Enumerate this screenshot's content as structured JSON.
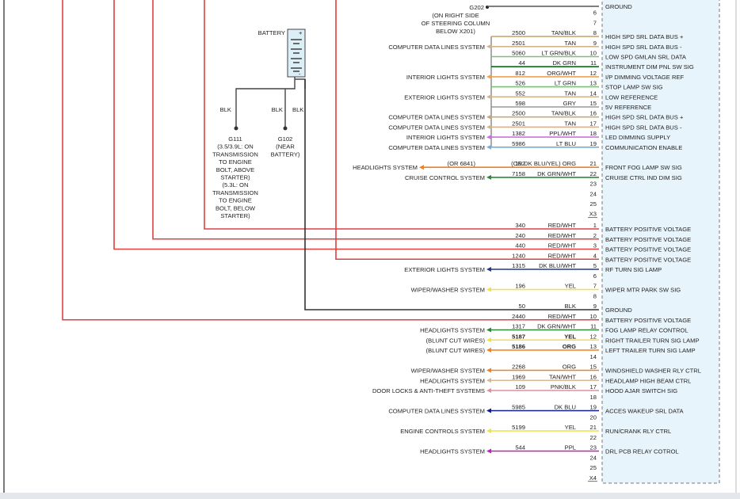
{
  "header": {
    "ground_ref": "G202",
    "ground_note": [
      "(ON RIGHT SIDE",
      "OF STEERING COLUMN",
      "BELOW X201)"
    ],
    "battery": "BATTERY",
    "battery_pos": "+",
    "battery_neg": "-",
    "wire_labels": [
      "BLK",
      "BLK",
      "BLK"
    ],
    "g111": [
      "G111",
      "(3.5/3.9L: ON",
      "TRANSMISSION",
      "TO ENGINE",
      "BOLT, ABOVE",
      "STARTER)",
      "(5.3L: ON",
      "TRANSMISSION",
      "TO ENGINE",
      "BOLT, BELOW",
      "STARTER)"
    ],
    "g102": [
      "G102",
      "(NEAR",
      "BATTERY)"
    ]
  },
  "connectors": [
    {
      "label": "X3",
      "pins": [
        {
          "function": "GROUND",
          "stroke": "#555555"
        },
        {
          "pin": 6
        },
        {
          "pin": 7
        },
        {
          "pin": 8,
          "circuit": "2500",
          "color": "TAN/BLK",
          "function": "HIGH SPD SRL DATA BUS +",
          "stroke": "#c8a878"
        },
        {
          "pin": 9,
          "circuit": "2501",
          "color": "TAN",
          "system": "COMPUTER DATA LINES SYSTEM",
          "function": "HIGH SPD SRL DATA BUS -",
          "stroke": "#d2b48c"
        },
        {
          "pin": 10,
          "circuit": "5060",
          "color": "LT GRN/BLK",
          "function": "LOW SPD GMLAN SRL DATA",
          "stroke": "#7cc07c"
        },
        {
          "pin": 11,
          "circuit": "44",
          "color": "DK GRN",
          "function": "INSTRUMENT DIM PNL SW SIG",
          "stroke": "#0a6a1a"
        },
        {
          "pin": 12,
          "circuit": "812",
          "color": "ORG/WHT",
          "system": "INTERIOR LIGHTS SYSTEM",
          "function": "I/P DIMMING VOLTAGE REF",
          "stroke": "#f0a050"
        },
        {
          "pin": 13,
          "circuit": "526",
          "color": "LT GRN",
          "function": "STOP LAMP SW SIG",
          "stroke": "#5fd35f"
        },
        {
          "pin": 14,
          "circuit": "552",
          "color": "TAN",
          "system": "EXTERIOR LIGHTS SYSTEM",
          "function": "LOW REFERENCE",
          "stroke": "#d2b48c"
        },
        {
          "pin": 15,
          "circuit": "598",
          "color": "GRY",
          "function": "5V REFERENCE",
          "stroke": "#999999"
        },
        {
          "pin": 16,
          "circuit": "2500",
          "color": "TAN/BLK",
          "system": "COMPUTER DATA LINES SYSTEM",
          "function": "HIGH SPD SRL DATA BUS +",
          "stroke": "#c8a878"
        },
        {
          "pin": 17,
          "circuit": "2501",
          "color": "TAN",
          "system": "COMPUTER DATA LINES SYSTEM",
          "function": "HIGH SPD SRL DATA BUS -",
          "stroke": "#d2b48c"
        },
        {
          "pin": 18,
          "circuit": "1382",
          "color": "PPL/WHT",
          "system": "INTERIOR LIGHTS SYSTEM",
          "function": "LED DIMMING SUPPLY",
          "stroke": "#d070e0"
        },
        {
          "pin": 19,
          "circuit": "5986",
          "color": "LT BLU",
          "system": "COMPUTER DATA LINES SYSTEM",
          "function": "COMMUNICATION ENABLE",
          "stroke": "#70b0e0"
        },
        {},
        {
          "pin": 21,
          "circuit": "192",
          "alt_circuit": "(OR 6841)",
          "color": "(OR DK BLU/YEL) ORG",
          "system": "HEADLIGHTS SYSTEM",
          "function": "FRONT FOG LAMP SW SIG",
          "stroke": "#f08020"
        },
        {
          "pin": 22,
          "circuit": "7158",
          "color": "DK GRN/WHT",
          "system": "CRUISE CONTROL SYSTEM",
          "function": "CRUISE CTRL IND DIM SIG",
          "stroke": "#2a8a3a"
        },
        {
          "pin": 23
        },
        {
          "pin": 24
        },
        {
          "pin": 25
        }
      ]
    },
    {
      "label": "X4",
      "pins": [
        {
          "pin": 1,
          "circuit": "340",
          "color": "RED/WHT",
          "function": "BATTERY POSITIVE VOLTAGE",
          "stroke": "#e04040"
        },
        {
          "pin": 2,
          "circuit": "240",
          "color": "RED/WHT",
          "function": "BATTERY POSITIVE VOLTAGE",
          "stroke": "#e04040"
        },
        {
          "pin": 3,
          "circuit": "440",
          "color": "RED/WHT",
          "function": "BATTERY POSITIVE VOLTAGE",
          "stroke": "#e04040"
        },
        {
          "pin": 4,
          "circuit": "1240",
          "color": "RED/WHT",
          "function": "BATTERY POSITIVE VOLTAGE",
          "stroke": "#e04040"
        },
        {
          "pin": 5,
          "circuit": "1315",
          "color": "DK BLU/WHT",
          "system": "EXTERIOR LIGHTS SYSTEM",
          "function": "RF TURN SIG LAMP",
          "stroke": "#203a8a"
        },
        {
          "pin": 6
        },
        {
          "pin": 7,
          "circuit": "196",
          "color": "YEL",
          "system": "WIPER/WASHER SYSTEM",
          "function": "WIPER MTR PARK SW SIG",
          "stroke": "#f0e040"
        },
        {
          "pin": 8
        },
        {
          "pin": 9,
          "circuit": "50",
          "color": "BLK",
          "function": "GROUND",
          "stroke": "#333333"
        },
        {
          "pin": 10,
          "circuit": "2440",
          "color": "RED/WHT",
          "function": "BATTERY POSITIVE VOLTAGE",
          "stroke": "#e04040"
        },
        {
          "pin": 11,
          "circuit": "1317",
          "color": "DK GRN/WHT",
          "system": "HEADLIGHTS SYSTEM",
          "function": "FOG LAMP RELAY CONTROL",
          "stroke": "#2a8a3a"
        },
        {
          "pin": 12,
          "circuit": "5187",
          "color": "YEL",
          "system": "(BLUNT CUT WIRES)",
          "function": "RIGHT TRAILER TURN SIG LAMP",
          "stroke": "#f0e040"
        },
        {
          "pin": 13,
          "circuit": "5186",
          "color": "ORG",
          "system": "(BLUNT CUT WIRES)",
          "function": "LEFT TRAILER TURN SIG LAMP",
          "stroke": "#f08020"
        },
        {
          "pin": 14
        },
        {
          "pin": 15,
          "circuit": "2268",
          "color": "ORG",
          "system": "WIPER/WASHER SYSTEM",
          "function": "WINDSHIELD WASHER RLY CTRL",
          "stroke": "#f08020"
        },
        {
          "pin": 16,
          "circuit": "1969",
          "color": "TAN/WHT",
          "system": "HEADLIGHTS SYSTEM",
          "function": "HEADLAMP HIGH BEAM CTRL",
          "stroke": "#d8b890"
        },
        {
          "pin": 17,
          "circuit": "109",
          "color": "PNK/BLK",
          "system": "DOOR LOCKS & ANTI-THEFT SYSTEMS",
          "function": "HOOD AJAR SWITCH SIG",
          "stroke": "#e090a0"
        },
        {
          "pin": 18
        },
        {
          "pin": 19,
          "circuit": "5985",
          "color": "DK BLU",
          "system": "COMPUTER DATA LINES SYSTEM",
          "function": "ACCES WAKEUP SRL DATA",
          "stroke": "#10208a"
        },
        {
          "pin": 20
        },
        {
          "pin": 21,
          "circuit": "5199",
          "color": "YEL",
          "system": "ENGINE CONTROLS SYSTEM",
          "function": "RUN/CRANK RLY CTRL",
          "stroke": "#f0e040"
        },
        {
          "pin": 22
        },
        {
          "pin": 23,
          "circuit": "544",
          "color": "PPL",
          "system": "HEADLIGHTS SYSTEM",
          "function": "DRL PCB RELAY COTROL",
          "stroke": "#c020c0"
        },
        {
          "pin": 24
        },
        {
          "pin": 25
        }
      ]
    }
  ]
}
